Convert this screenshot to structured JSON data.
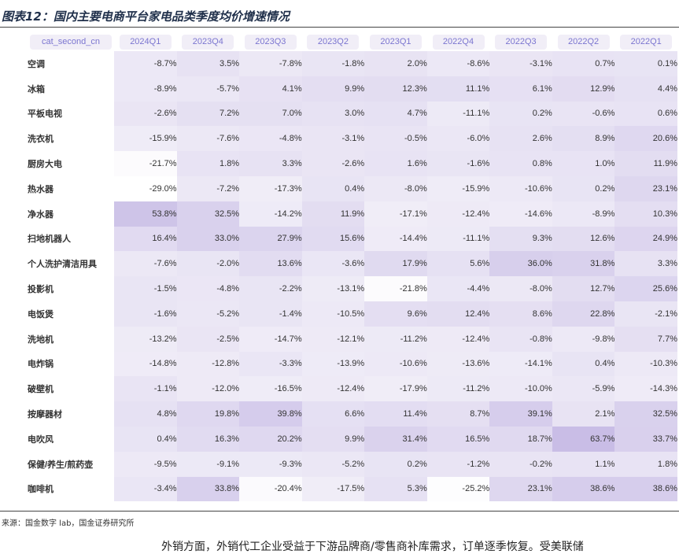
{
  "page": {
    "figure_title": "图表12：国内主要电商平台家电品类季度均价增速情况",
    "source": "来源：国金数字 lab，国金证券研究所",
    "trailing_text": "外销方面，外销代工企业受益于下游品牌商/零售商补库需求，订单逐季恢复。受美联储"
  },
  "colors": {
    "header_text": "#7b75d0",
    "header_bg": "#f1eef7",
    "heat_low": "#ffffff",
    "heat_high": "#c9bde6"
  },
  "chart_data": {
    "type": "table",
    "row_header_label": "cat_second_cn",
    "columns": [
      "2024Q1",
      "2023Q4",
      "2023Q3",
      "2023Q2",
      "2023Q1",
      "2022Q4",
      "2022Q3",
      "2022Q2",
      "2022Q1"
    ],
    "rows": [
      {
        "label": "空调",
        "values": [
          "-8.7%",
          "3.5%",
          "-7.8%",
          "-1.8%",
          "2.0%",
          "-8.6%",
          "-3.1%",
          "0.7%",
          "0.1%"
        ]
      },
      {
        "label": "冰箱",
        "values": [
          "-8.9%",
          "-5.7%",
          "4.1%",
          "9.9%",
          "12.3%",
          "11.1%",
          "6.1%",
          "12.9%",
          "4.4%"
        ]
      },
      {
        "label": "平板电视",
        "values": [
          "-2.6%",
          "7.2%",
          "7.0%",
          "3.0%",
          "4.7%",
          "-11.1%",
          "0.2%",
          "-0.6%",
          "0.6%"
        ]
      },
      {
        "label": "洗衣机",
        "values": [
          "-15.9%",
          "-7.6%",
          "-4.8%",
          "-3.1%",
          "-0.5%",
          "-6.0%",
          "2.6%",
          "8.9%",
          "20.6%"
        ]
      },
      {
        "label": "厨房大电",
        "values": [
          "-21.7%",
          "1.8%",
          "3.3%",
          "-2.6%",
          "1.6%",
          "-1.6%",
          "0.8%",
          "1.0%",
          "11.9%"
        ]
      },
      {
        "label": "热水器",
        "values": [
          "-29.0%",
          "-7.2%",
          "-17.3%",
          "0.4%",
          "-8.0%",
          "-15.9%",
          "-10.6%",
          "0.2%",
          "23.1%"
        ]
      },
      {
        "label": "净水器",
        "values": [
          "53.8%",
          "32.5%",
          "-14.2%",
          "11.9%",
          "-17.1%",
          "-12.4%",
          "-14.6%",
          "-8.9%",
          "10.3%"
        ]
      },
      {
        "label": "扫地机器人",
        "values": [
          "16.4%",
          "33.0%",
          "27.9%",
          "15.6%",
          "-14.4%",
          "-11.1%",
          "9.3%",
          "12.6%",
          "24.9%"
        ]
      },
      {
        "label": "个人洗护清洁用具",
        "values": [
          "-7.6%",
          "-2.0%",
          "13.6%",
          "-3.6%",
          "17.9%",
          "5.6%",
          "36.0%",
          "31.8%",
          "3.3%"
        ]
      },
      {
        "label": "投影机",
        "values": [
          "-1.5%",
          "-4.8%",
          "-2.2%",
          "-13.1%",
          "-21.8%",
          "-4.4%",
          "-8.0%",
          "12.7%",
          "25.6%"
        ]
      },
      {
        "label": "电饭煲",
        "values": [
          "-1.6%",
          "-5.2%",
          "-1.4%",
          "-10.5%",
          "9.6%",
          "12.4%",
          "8.6%",
          "22.8%",
          "-2.1%"
        ]
      },
      {
        "label": "洗地机",
        "values": [
          "-13.2%",
          "-2.5%",
          "-14.7%",
          "-12.1%",
          "-11.2%",
          "-12.4%",
          "-0.8%",
          "-9.8%",
          "7.7%"
        ]
      },
      {
        "label": "电炸锅",
        "values": [
          "-14.8%",
          "-12.8%",
          "-3.3%",
          "-13.9%",
          "-10.6%",
          "-13.6%",
          "-14.1%",
          "0.4%",
          "-10.3%"
        ]
      },
      {
        "label": "破壁机",
        "values": [
          "-1.1%",
          "-12.0%",
          "-16.5%",
          "-12.4%",
          "-17.9%",
          "-11.2%",
          "-10.0%",
          "-5.9%",
          "-14.3%"
        ]
      },
      {
        "label": "按摩器材",
        "values": [
          "4.8%",
          "19.8%",
          "39.8%",
          "6.6%",
          "11.4%",
          "8.7%",
          "39.1%",
          "2.1%",
          "32.5%"
        ]
      },
      {
        "label": "电吹风",
        "values": [
          "0.4%",
          "16.3%",
          "20.2%",
          "9.9%",
          "31.4%",
          "16.5%",
          "18.7%",
          "63.7%",
          "33.7%"
        ]
      },
      {
        "label": "保健/养生/煎药壶",
        "values": [
          "-9.5%",
          "-9.1%",
          "-9.3%",
          "-5.2%",
          "0.2%",
          "-1.2%",
          "-0.2%",
          "1.1%",
          "1.8%"
        ]
      },
      {
        "label": "咖啡机",
        "values": [
          "-3.4%",
          "33.8%",
          "-20.4%",
          "-17.5%",
          "5.3%",
          "-25.2%",
          "23.1%",
          "38.6%",
          "38.6%"
        ]
      }
    ]
  }
}
